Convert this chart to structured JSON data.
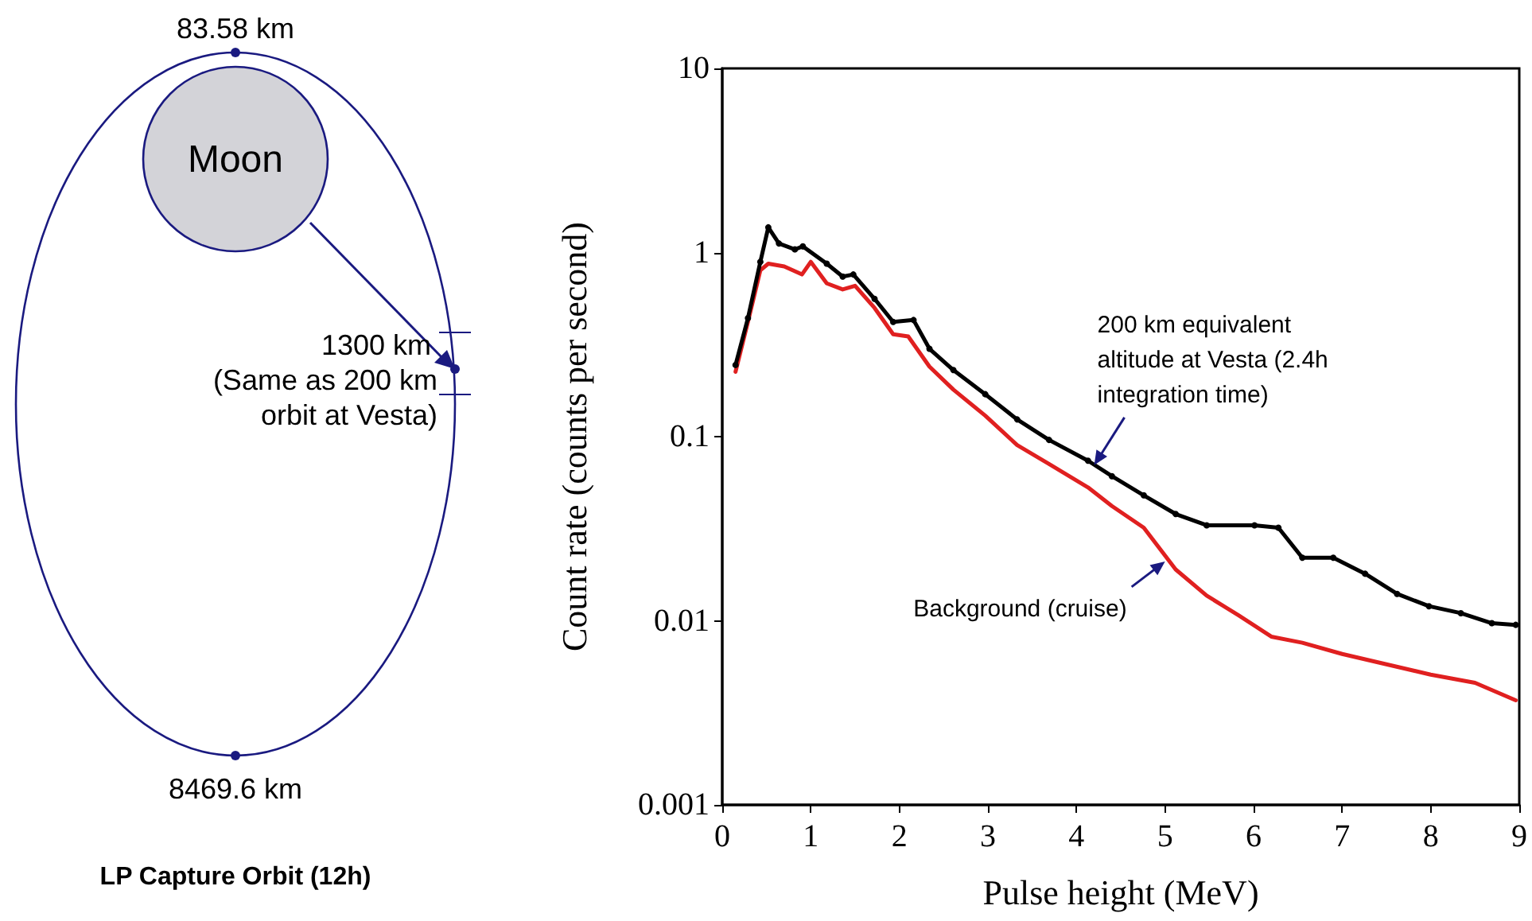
{
  "chart_data": [
    {
      "type": "other",
      "title": "LP Capture Orbit (12h)",
      "annotations": [
        "83.58 km",
        "Moon",
        "1300 km\n(Same as 200 km\norbit at Vesta)",
        "8469.6 km"
      ]
    },
    {
      "type": "line",
      "xlabel": "Pulse height (MeV)",
      "ylabel": "Count rate (counts per second)",
      "log": "y",
      "grid": false,
      "xlim": [
        0,
        9
      ],
      "xticks": [
        0,
        1,
        2,
        3,
        4,
        5,
        6,
        7,
        8,
        9
      ],
      "ylim": [
        0.001,
        10
      ],
      "yticks": [
        0.001,
        0.01,
        0.1,
        1,
        10
      ],
      "series": [
        {
          "color": "#000000",
          "marker": "circle",
          "x": [
            0.15,
            0.29,
            0.43,
            0.52,
            0.64,
            0.82,
            0.91,
            1.18,
            1.36,
            1.48,
            1.72,
            1.93,
            2.16,
            2.34,
            2.61,
            2.97,
            3.33,
            3.69,
            4.13,
            4.4,
            4.76,
            5.12,
            5.47,
            6.01,
            6.28,
            6.55,
            6.9,
            7.26,
            7.62,
            7.98,
            8.34,
            8.69,
            8.96
          ],
          "values": [
            0.245,
            0.44,
            0.89,
            1.37,
            1.12,
            1.04,
            1.08,
            0.87,
            0.74,
            0.76,
            0.56,
            0.42,
            0.43,
            0.3,
            0.23,
            0.17,
            0.124,
            0.096,
            0.074,
            0.061,
            0.048,
            0.038,
            0.033,
            0.033,
            0.032,
            0.022,
            0.022,
            0.018,
            0.014,
            0.012,
            0.011,
            0.0097,
            0.0095
          ]
        },
        {
          "color": "#e02020",
          "marker": "none",
          "x": [
            0.15,
            0.29,
            0.43,
            0.52,
            0.7,
            0.9,
            1.0,
            1.18,
            1.36,
            1.5,
            1.72,
            1.93,
            2.1,
            2.34,
            2.61,
            2.97,
            3.33,
            3.69,
            4.13,
            4.4,
            4.76,
            5.12,
            5.47,
            5.83,
            6.2,
            6.55,
            7.0,
            7.5,
            8.0,
            8.5,
            8.96
          ],
          "values": [
            0.225,
            0.42,
            0.8,
            0.87,
            0.84,
            0.76,
            0.89,
            0.68,
            0.63,
            0.66,
            0.5,
            0.36,
            0.35,
            0.24,
            0.18,
            0.13,
            0.09,
            0.071,
            0.053,
            0.042,
            0.032,
            0.019,
            0.0137,
            0.0107,
            0.0082,
            0.0076,
            0.0066,
            0.0058,
            0.0051,
            0.0046,
            0.0037
          ]
        }
      ],
      "annotations": [
        {
          "text": "200 km equivalent\naltitude at Vesta (2.4h\nintegration time)",
          "x": 4.2,
          "y": 0.07
        },
        {
          "text": "Background (cruise)",
          "x": 5.0,
          "y": 0.021
        }
      ]
    }
  ]
}
